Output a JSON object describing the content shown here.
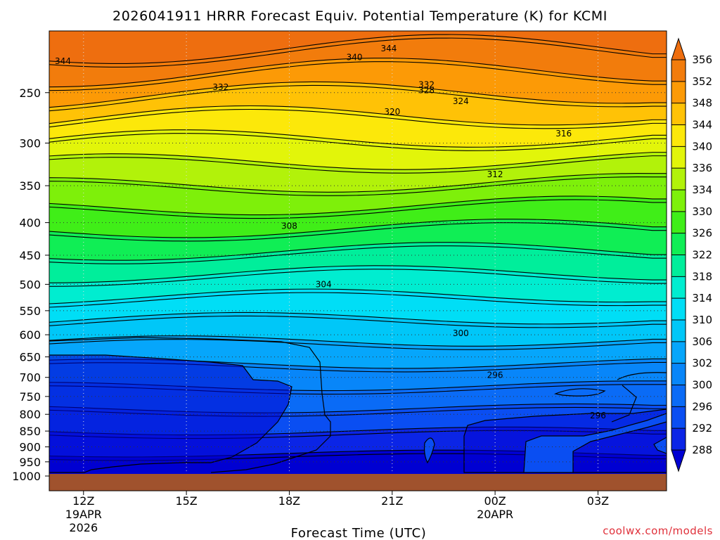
{
  "chart_data": {
    "type": "heatmap",
    "title": "2026041911 HRRR Forecast Equiv. Potential Temperature (K) for KCMI",
    "xlabel": "Forecast Time (UTC)",
    "ylabel": "",
    "credit": "coolwx.com/models",
    "x_ticks": [
      {
        "hour": 12,
        "label": "12Z",
        "sub1": "19APR",
        "sub2": "2026"
      },
      {
        "hour": 15,
        "label": "15Z",
        "sub1": "",
        "sub2": ""
      },
      {
        "hour": 18,
        "label": "18Z",
        "sub1": "",
        "sub2": ""
      },
      {
        "hour": 21,
        "label": "21Z",
        "sub1": "",
        "sub2": ""
      },
      {
        "hour": 24,
        "label": "00Z",
        "sub1": "20APR",
        "sub2": ""
      },
      {
        "hour": 27,
        "label": "03Z",
        "sub1": "",
        "sub2": ""
      }
    ],
    "x_range_hours": [
      11,
      29
    ],
    "y_ticks": [
      250,
      300,
      350,
      400,
      450,
      500,
      550,
      600,
      650,
      700,
      750,
      800,
      850,
      900,
      950,
      1000
    ],
    "y_range_hpa": [
      200,
      1000
    ],
    "y_scale": "log-pressure",
    "grid": true,
    "colorbar": {
      "levels": [
        288,
        292,
        296,
        300,
        302,
        306,
        310,
        314,
        318,
        322,
        326,
        330,
        334,
        336,
        340,
        344,
        348,
        352,
        356
      ],
      "colors": [
        "#0000d2",
        "#0b25e6",
        "#0a4ef2",
        "#0a6bf6",
        "#0886f9",
        "#06a6fb",
        "#00c7f8",
        "#00def6",
        "#00edd0",
        "#00ee9b",
        "#10ee55",
        "#40ee18",
        "#7ef00a",
        "#b2f20a",
        "#e2f50a",
        "#fce80a",
        "#ffc206",
        "#fc9a06",
        "#f27c0c",
        "#ee6e0f"
      ],
      "under_color": "#0000d2",
      "over_color": "#ee6e0f"
    },
    "contour_labels": [
      {
        "value": "344",
        "hour": 11.4,
        "p": 223
      },
      {
        "value": "340",
        "hour": 19.9,
        "p": 220
      },
      {
        "value": "344",
        "hour": 20.9,
        "p": 213
      },
      {
        "value": "332",
        "hour": 16.0,
        "p": 245
      },
      {
        "value": "332",
        "hour": 22.0,
        "p": 243
      },
      {
        "value": "328",
        "hour": 22.0,
        "p": 248
      },
      {
        "value": "324",
        "hour": 23.0,
        "p": 258
      },
      {
        "value": "320",
        "hour": 21.0,
        "p": 268
      },
      {
        "value": "316",
        "hour": 26.0,
        "p": 290
      },
      {
        "value": "312",
        "hour": 24.0,
        "p": 336
      },
      {
        "value": "308",
        "hour": 18.0,
        "p": 405
      },
      {
        "value": "304",
        "hour": 19.0,
        "p": 500
      },
      {
        "value": "300",
        "hour": 23.0,
        "p": 597
      },
      {
        "value": "296",
        "hour": 24.0,
        "p": 694
      },
      {
        "value": "296",
        "hour": 27.0,
        "p": 804
      }
    ],
    "surface_color": "#a0522d"
  }
}
